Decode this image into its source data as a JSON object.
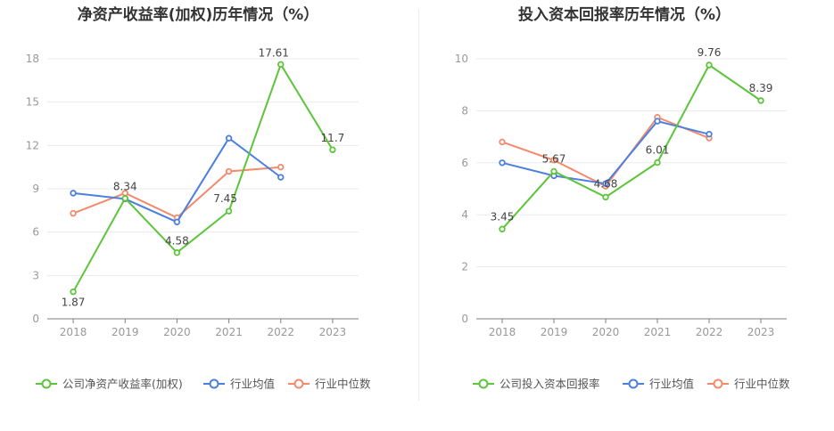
{
  "chart_data": [
    {
      "type": "line",
      "title": "净资产收益率(加权)历年情况（%）",
      "categories": [
        "2018",
        "2019",
        "2020",
        "2021",
        "2022",
        "2023"
      ],
      "ylim": [
        0,
        18
      ],
      "yticks": [
        0,
        3,
        6,
        9,
        12,
        15,
        18
      ],
      "grid": true,
      "legend_position": "bottom",
      "series": [
        {
          "name": "公司净资产收益率(加权)",
          "color": "#5cc53a",
          "values": [
            1.87,
            8.34,
            4.58,
            7.45,
            17.61,
            11.7
          ],
          "labels": [
            "1.87",
            "8.34",
            "4.58",
            "7.45",
            "17.61",
            "11.7"
          ]
        },
        {
          "name": "行业均值",
          "color": "#4b7fe0",
          "values": [
            8.7,
            8.3,
            6.7,
            12.5,
            9.8,
            null
          ]
        },
        {
          "name": "行业中位数",
          "color": "#f4896b",
          "values": [
            7.3,
            8.7,
            7.0,
            10.2,
            10.5,
            null
          ]
        }
      ]
    },
    {
      "type": "line",
      "title": "投入资本回报率历年情况（%）",
      "categories": [
        "2018",
        "2019",
        "2020",
        "2021",
        "2022",
        "2023"
      ],
      "ylim": [
        0,
        10
      ],
      "yticks": [
        0,
        2,
        4,
        6,
        8,
        10
      ],
      "grid": true,
      "legend_position": "bottom",
      "series": [
        {
          "name": "公司投入资本回报率",
          "color": "#5cc53a",
          "values": [
            3.45,
            5.67,
            4.68,
            6.01,
            9.76,
            8.39
          ],
          "labels": [
            "3.45",
            "5.67",
            "4.68",
            "6.01",
            "9.76",
            "8.39"
          ]
        },
        {
          "name": "行业均值",
          "color": "#4b7fe0",
          "values": [
            6.0,
            5.5,
            5.2,
            7.6,
            7.1,
            null
          ]
        },
        {
          "name": "行业中位数",
          "color": "#f4896b",
          "values": [
            6.8,
            6.1,
            5.1,
            7.75,
            6.95,
            null
          ]
        }
      ]
    }
  ]
}
